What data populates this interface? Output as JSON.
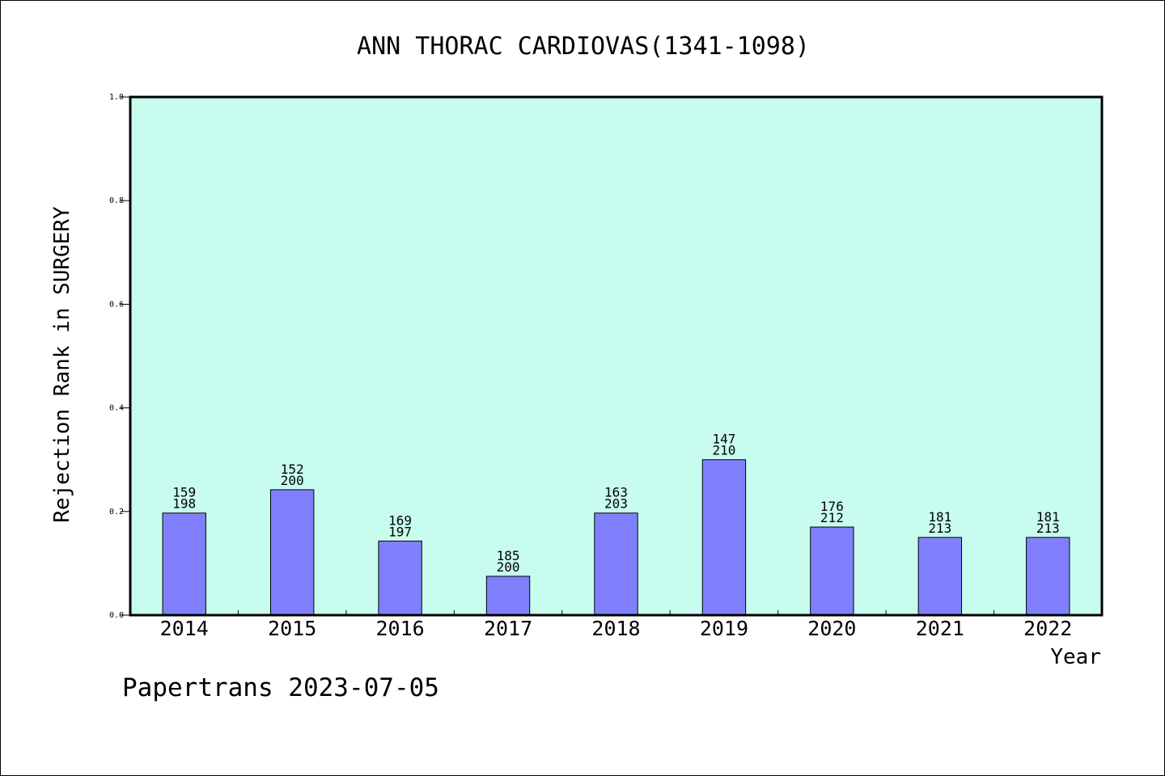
{
  "chart_data": {
    "type": "bar",
    "title": "ANN THORAC CARDIOVAS(1341-1098)",
    "xlabel": "Year",
    "ylabel": "Rejection Rank in SURGERY",
    "ylim": [
      0,
      1.0
    ],
    "yticks": [
      "0.0",
      "0.2",
      "0.4",
      "0.6",
      "0.8",
      "1.0"
    ],
    "categories": [
      "2014",
      "2015",
      "2016",
      "2017",
      "2018",
      "2019",
      "2020",
      "2021",
      "2022"
    ],
    "values": [
      0.197,
      0.242,
      0.143,
      0.075,
      0.197,
      0.3,
      0.17,
      0.15,
      0.15
    ],
    "label_top": [
      "159",
      "152",
      "169",
      "185",
      "163",
      "147",
      "176",
      "181",
      "181"
    ],
    "label_bottom": [
      "198",
      "200",
      "197",
      "200",
      "203",
      "210",
      "212",
      "213",
      "213"
    ],
    "grid": false,
    "colors": {
      "plot_bg": "#c8fcee",
      "bar_fill": "#8080ff",
      "bar_edge": "#000000"
    }
  },
  "footer": {
    "text": "Papertrans 2023-07-05"
  }
}
